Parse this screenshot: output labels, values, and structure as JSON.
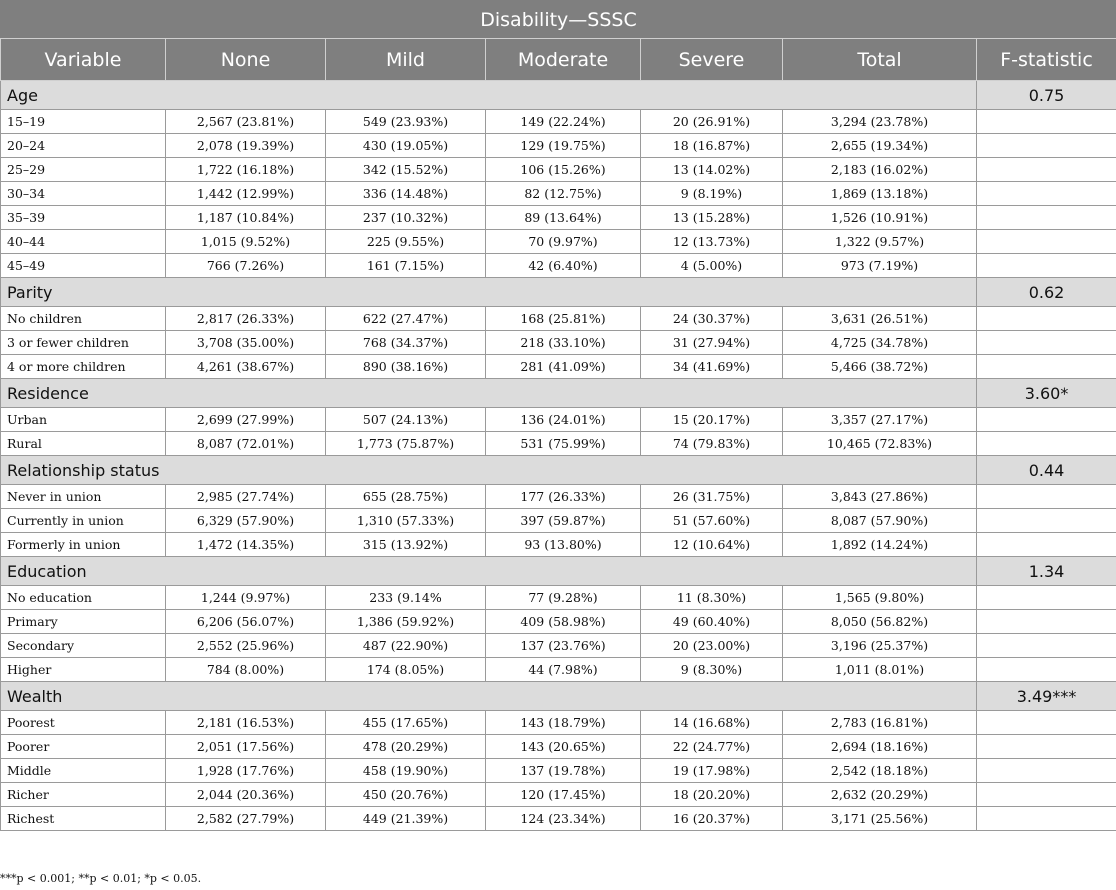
{
  "title": "Disability—SSSC",
  "columns": [
    "Variable",
    "None",
    "Mild",
    "Moderate",
    "Severe",
    "Total",
    "F-statistic"
  ],
  "sections": [
    {
      "label": "Age",
      "f_statistic": "0.75",
      "rows": [
        {
          "variable": "15–19",
          "none": "2,567 (23.81%)",
          "mild": "549 (23.93%)",
          "moderate": "149 (22.24%)",
          "severe": "20 (26.91%)",
          "total": "3,294 (23.78%)"
        },
        {
          "variable": "20–24",
          "none": "2,078 (19.39%)",
          "mild": "430 (19.05%)",
          "moderate": "129 (19.75%)",
          "severe": "18 (16.87%)",
          "total": "2,655 (19.34%)"
        },
        {
          "variable": "25–29",
          "none": "1,722 (16.18%)",
          "mild": "342 (15.52%)",
          "moderate": "106 (15.26%)",
          "severe": "13 (14.02%)",
          "total": "2,183 (16.02%)"
        },
        {
          "variable": "30–34",
          "none": "1,442 (12.99%)",
          "mild": "336 (14.48%)",
          "moderate": "82 (12.75%)",
          "severe": "9 (8.19%)",
          "total": "1,869 (13.18%)"
        },
        {
          "variable": "35–39",
          "none": "1,187 (10.84%)",
          "mild": "237 (10.32%)",
          "moderate": "89 (13.64%)",
          "severe": "13 (15.28%)",
          "total": "1,526 (10.91%)"
        },
        {
          "variable": "40–44",
          "none": "1,015 (9.52%)",
          "mild": "225 (9.55%)",
          "moderate": "70 (9.97%)",
          "severe": "12 (13.73%)",
          "total": "1,322 (9.57%)"
        },
        {
          "variable": "45–49",
          "none": "766 (7.26%)",
          "mild": "161 (7.15%)",
          "moderate": "42 (6.40%)",
          "severe": "4 (5.00%)",
          "total": "973 (7.19%)"
        }
      ]
    },
    {
      "label": "Parity",
      "f_statistic": "0.62",
      "rows": [
        {
          "variable": "No children",
          "none": "2,817 (26.33%)",
          "mild": "622 (27.47%)",
          "moderate": "168 (25.81%)",
          "severe": "24 (30.37%)",
          "total": "3,631 (26.51%)"
        },
        {
          "variable": "3 or fewer children",
          "none": "3,708 (35.00%)",
          "mild": "768 (34.37%)",
          "moderate": "218 (33.10%)",
          "severe": "31 (27.94%)",
          "total": "4,725 (34.78%)"
        },
        {
          "variable": "4 or more children",
          "none": "4,261 (38.67%)",
          "mild": "890 (38.16%)",
          "moderate": "281 (41.09%)",
          "severe": "34 (41.69%)",
          "total": "5,466 (38.72%)"
        }
      ]
    },
    {
      "label": "Residence",
      "f_statistic": "3.60*",
      "rows": [
        {
          "variable": "Urban",
          "none": "2,699 (27.99%)",
          "mild": "507 (24.13%)",
          "moderate": "136 (24.01%)",
          "severe": "15 (20.17%)",
          "total": "3,357 (27.17%)"
        },
        {
          "variable": "Rural",
          "none": "8,087 (72.01%)",
          "mild": "1,773 (75.87%)",
          "moderate": "531 (75.99%)",
          "severe": "74 (79.83%)",
          "total": "10,465 (72.83%)"
        }
      ]
    },
    {
      "label": "Relationship status",
      "f_statistic": "0.44",
      "rows": [
        {
          "variable": "Never in union",
          "none": "2,985 (27.74%)",
          "mild": "655 (28.75%)",
          "moderate": "177 (26.33%)",
          "severe": "26 (31.75%)",
          "total": "3,843 (27.86%)"
        },
        {
          "variable": "Currently in union",
          "none": "6,329 (57.90%)",
          "mild": "1,310 (57.33%)",
          "moderate": "397 (59.87%)",
          "severe": "51 (57.60%)",
          "total": "8,087 (57.90%)"
        },
        {
          "variable": "Formerly in union",
          "none": "1,472 (14.35%)",
          "mild": "315 (13.92%)",
          "moderate": "93 (13.80%)",
          "severe": "12 (10.64%)",
          "total": "1,892 (14.24%)"
        }
      ]
    },
    {
      "label": "Education",
      "f_statistic": "1.34",
      "rows": [
        {
          "variable": "No education",
          "none": "1,244 (9.97%)",
          "mild": "233 (9.14%",
          "moderate": "77 (9.28%)",
          "severe": "11 (8.30%)",
          "total": "1,565 (9.80%)"
        },
        {
          "variable": "Primary",
          "none": "6,206 (56.07%)",
          "mild": "1,386 (59.92%)",
          "moderate": "409 (58.98%)",
          "severe": "49 (60.40%)",
          "total": "8,050 (56.82%)"
        },
        {
          "variable": "Secondary",
          "none": "2,552 (25.96%)",
          "mild": "487 (22.90%)",
          "moderate": "137 (23.76%)",
          "severe": "20 (23.00%)",
          "total": "3,196 (25.37%)"
        },
        {
          "variable": "Higher",
          "none": "784 (8.00%)",
          "mild": "174 (8.05%)",
          "moderate": "44 (7.98%)",
          "severe": "9 (8.30%)",
          "total": "1,011 (8.01%)"
        }
      ]
    },
    {
      "label": "Wealth",
      "f_statistic": "3.49***",
      "rows": [
        {
          "variable": "Poorest",
          "none": "2,181 (16.53%)",
          "mild": "455 (17.65%)",
          "moderate": "143 (18.79%)",
          "severe": "14 (16.68%)",
          "total": "2,783 (16.81%)"
        },
        {
          "variable": "Poorer",
          "none": "2,051 (17.56%)",
          "mild": "478 (20.29%)",
          "moderate": "143 (20.65%)",
          "severe": "22 (24.77%)",
          "total": "2,694 (18.16%)"
        },
        {
          "variable": "Middle",
          "none": "1,928 (17.76%)",
          "mild": "458 (19.90%)",
          "moderate": "137 (19.78%)",
          "severe": "19 (17.98%)",
          "total": "2,542 (18.18%)"
        },
        {
          "variable": "Richer",
          "none": "2,044 (20.36%)",
          "mild": "450 (20.76%)",
          "moderate": "120 (17.45%)",
          "severe": "18 (20.20%)",
          "total": "2,632 (20.29%)"
        },
        {
          "variable": "Richest",
          "none": "2,582 (27.79%)",
          "mild": "449 (21.39%)",
          "moderate": "124 (23.34%)",
          "severe": "16 (20.37%)",
          "total": "3,171 (25.56%)"
        }
      ]
    }
  ],
  "footnote": "***p < 0.001; **p < 0.01; *p < 0.05.",
  "colors": {
    "header_bg": "#7f7f7f",
    "section_bg": "#dcdcdc",
    "border": "#9a9a9a"
  }
}
